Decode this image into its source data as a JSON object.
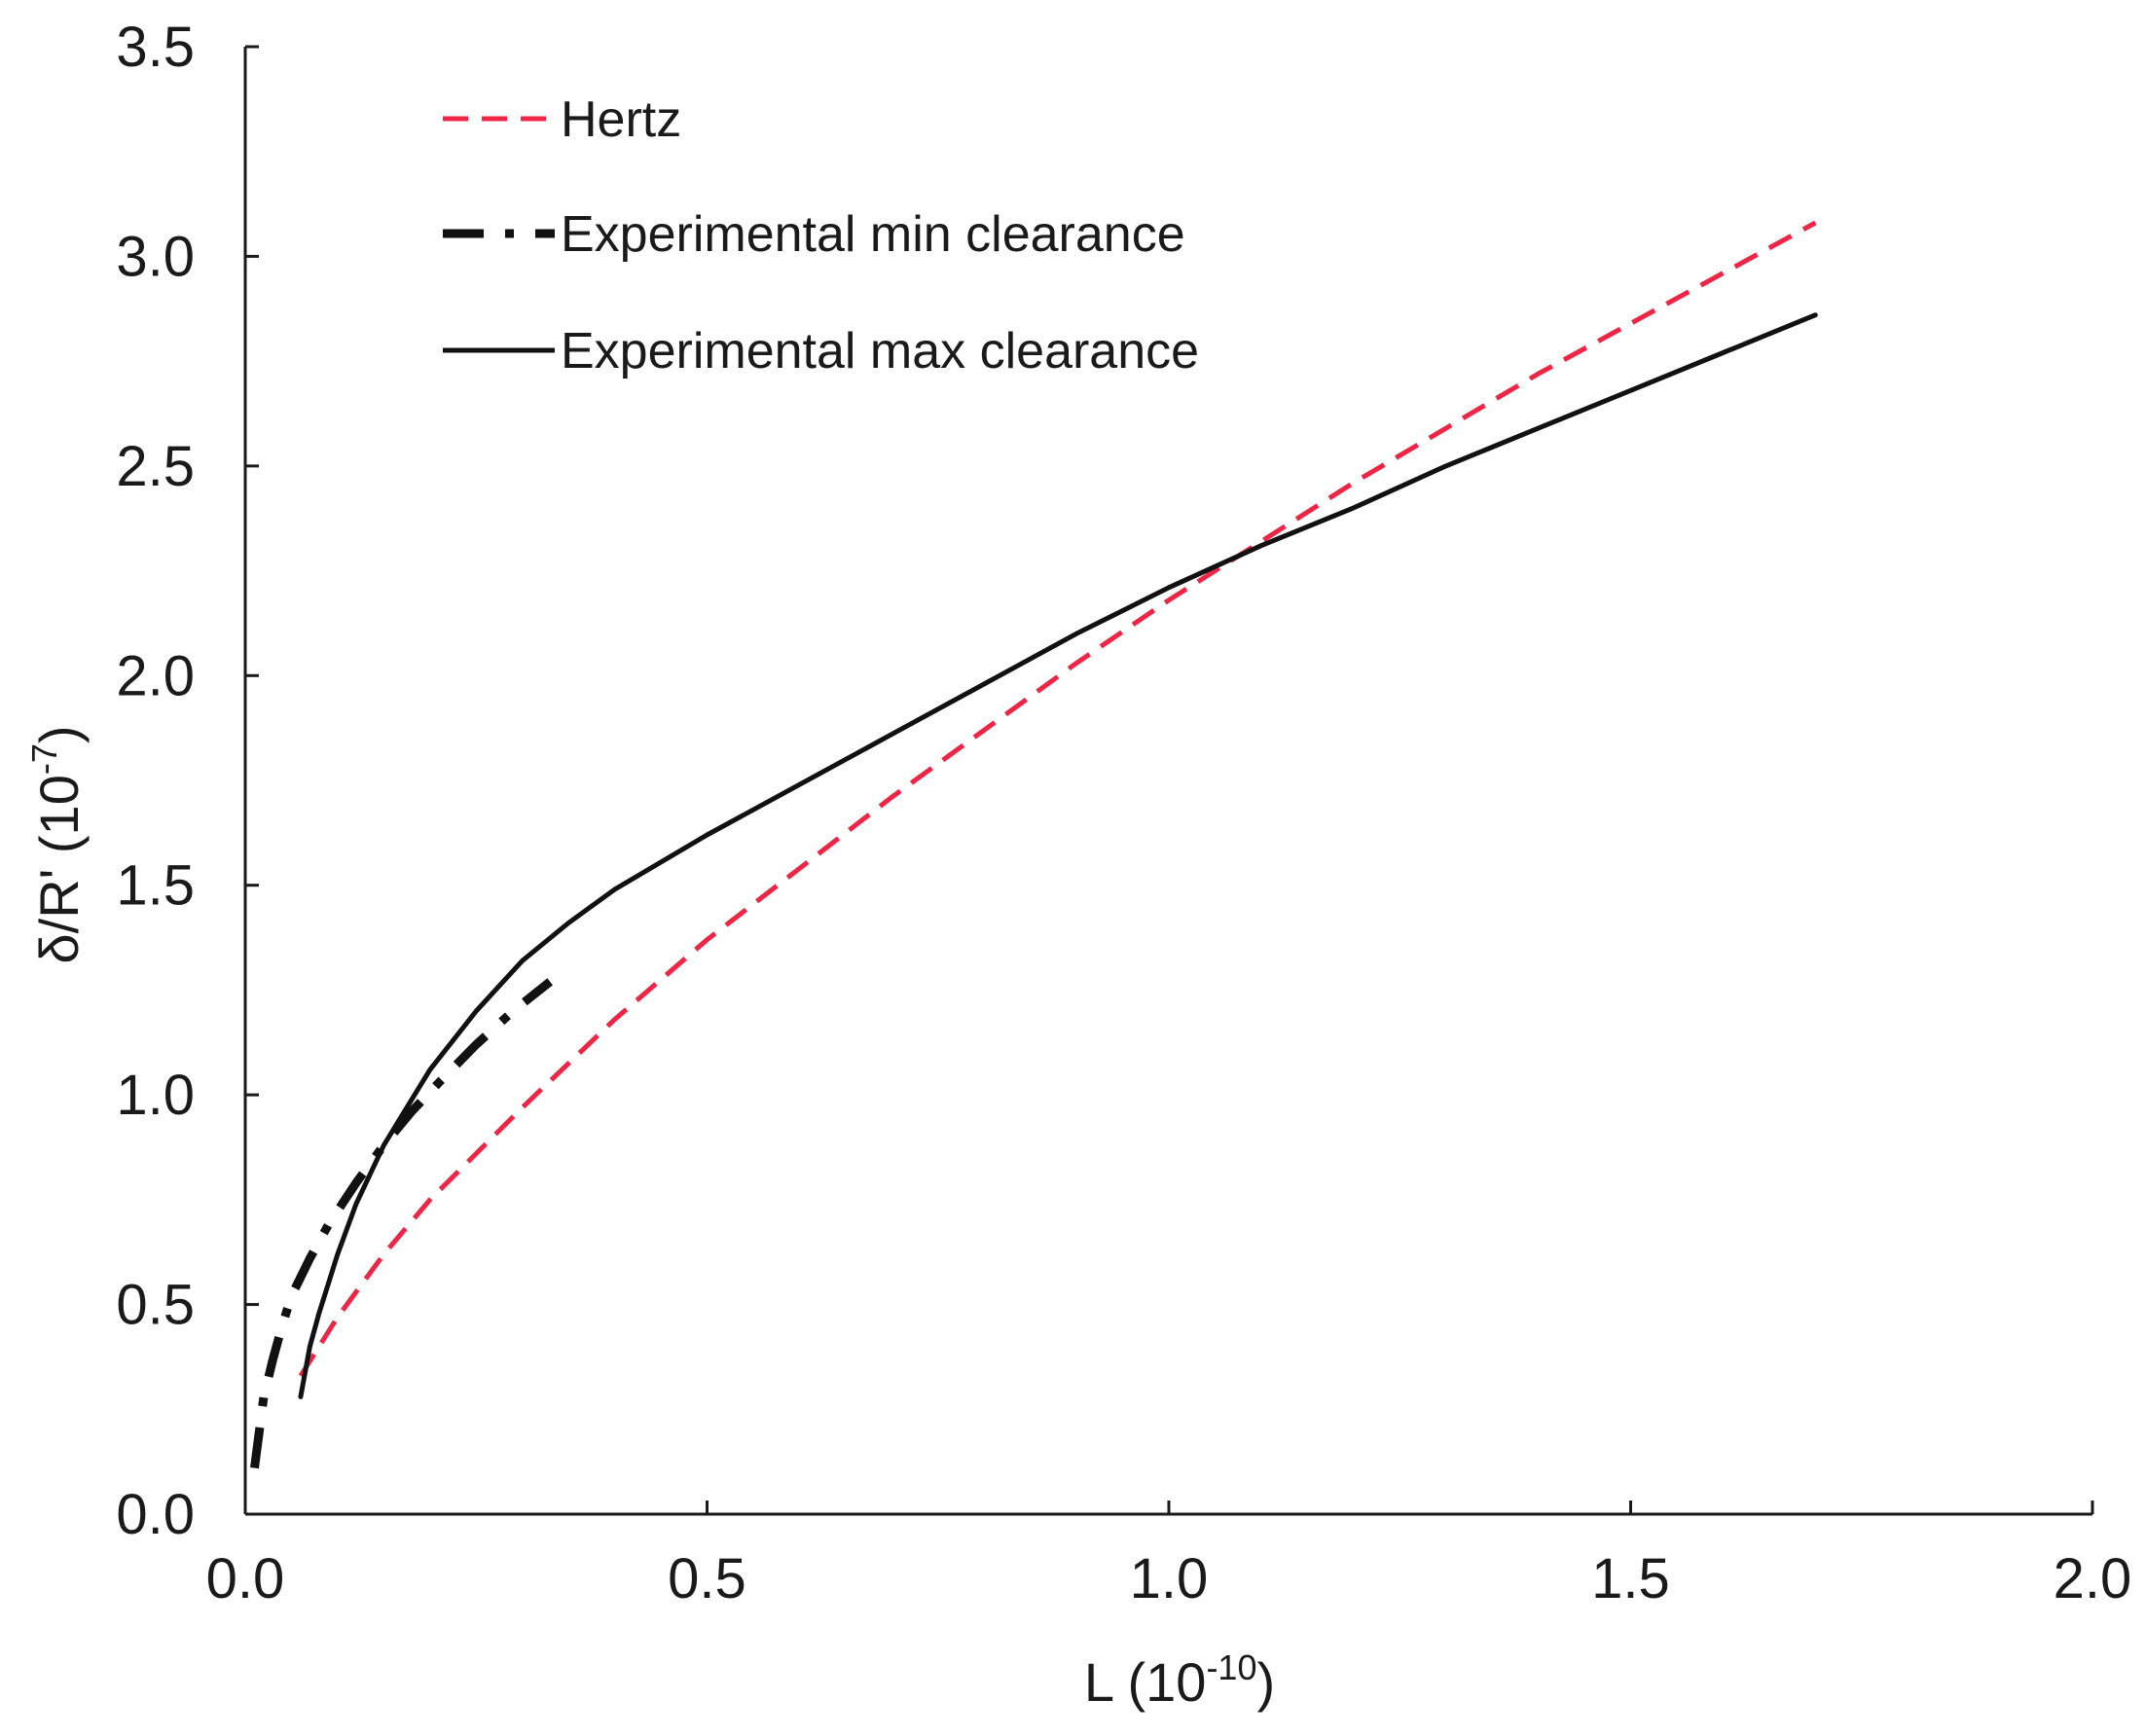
{
  "chart_data": {
    "type": "line",
    "title": "",
    "xlabel": {
      "base": "L (10",
      "exp": "-10",
      "end": ")"
    },
    "ylabel": {
      "base": "δ/R' (10",
      "exp": "-7",
      "end": ")"
    },
    "xlim": [
      0,
      2.0
    ],
    "ylim": [
      0,
      3.5
    ],
    "xticks": [
      "0.0",
      "0.5",
      "1.0",
      "1.5",
      "2.0"
    ],
    "yticks": [
      "0.0",
      "0.5",
      "1.0",
      "1.5",
      "2.0",
      "2.5",
      "3.0",
      "3.5"
    ],
    "grid": false,
    "legend_position": "top-left",
    "series": [
      {
        "name": "Hertz",
        "style": "dashed",
        "color": "#ee2545",
        "x": [
          0.06,
          0.08,
          0.1,
          0.15,
          0.2,
          0.3,
          0.4,
          0.5,
          0.6,
          0.7,
          0.8,
          0.9,
          1.0,
          1.1,
          1.2,
          1.3,
          1.4,
          1.5,
          1.6,
          1.7
        ],
        "y": [
          0.33,
          0.4,
          0.47,
          0.62,
          0.75,
          0.97,
          1.18,
          1.37,
          1.54,
          1.71,
          1.87,
          2.03,
          2.18,
          2.32,
          2.46,
          2.59,
          2.72,
          2.84,
          2.96,
          3.08
        ]
      },
      {
        "name": "Experimental min clearance",
        "style": "dash-dot",
        "color": "#111111",
        "x": [
          0.01,
          0.02,
          0.03,
          0.04,
          0.05,
          0.07,
          0.09,
          0.12,
          0.15,
          0.18,
          0.21,
          0.25,
          0.29,
          0.33
        ],
        "y": [
          0.11,
          0.28,
          0.37,
          0.45,
          0.52,
          0.61,
          0.69,
          0.79,
          0.88,
          0.96,
          1.03,
          1.12,
          1.2,
          1.27
        ]
      },
      {
        "name": "Experimental max clearance",
        "style": "solid",
        "color": "#111111",
        "x": [
          0.06,
          0.07,
          0.08,
          0.1,
          0.12,
          0.15,
          0.2,
          0.25,
          0.3,
          0.35,
          0.4,
          0.5,
          0.6,
          0.7,
          0.8,
          0.9,
          1.0,
          1.1,
          1.2,
          1.3,
          1.4,
          1.5,
          1.6,
          1.7
        ],
        "y": [
          0.28,
          0.4,
          0.48,
          0.62,
          0.74,
          0.88,
          1.06,
          1.2,
          1.32,
          1.41,
          1.49,
          1.62,
          1.74,
          1.86,
          1.98,
          2.1,
          2.21,
          2.31,
          2.4,
          2.5,
          2.59,
          2.68,
          2.77,
          2.86
        ]
      }
    ]
  }
}
